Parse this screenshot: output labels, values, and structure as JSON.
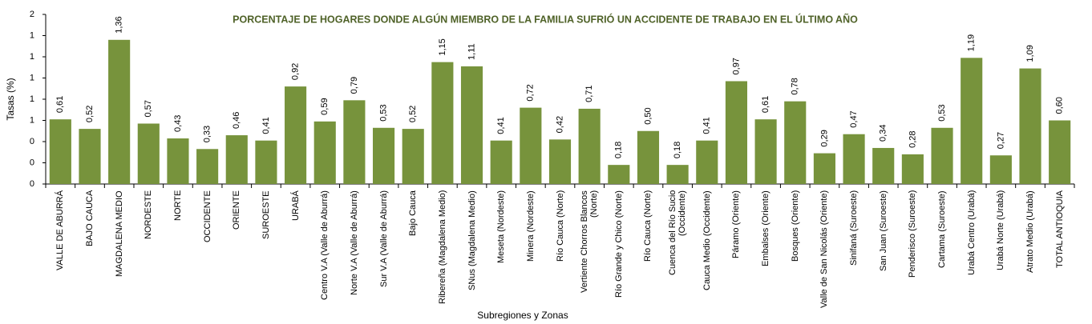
{
  "chart_data": {
    "type": "bar",
    "title": "PORCENTAJE DE HOGARES DONDE ALGÚN MIEMBRO DE LA FAMILIA SUFRIÓ UN ACCIDENTE DE TRABAJO EN EL ÚLTIMO AÑO",
    "ylabel": "Tasas (%)",
    "xlabel": "Subregiones y Zonas",
    "categories": [
      "VALLE DE ABURRÁ",
      "BAJO CAUCA",
      "MAGDALENA MEDIO",
      "NORDESTE",
      "NORTE",
      "OCCIDENTE",
      "ORIENTE",
      "SUROESTE",
      "URABÁ",
      "Centro V.A (Valle de Aburrá)",
      "Norte V.A (Valle de Aburrá)",
      "Sur V.A (Valle de Aburrá)",
      "Bajo Cauca",
      "Ribereña (Magdalena Medio)",
      "SNus (Magdalena Medio)",
      "Meseta (Nordeste)",
      "Minera (Nordeste)",
      "Río Cauca (Norte)",
      "Vertiente Chorros Blancos (Norte)",
      "Río Grande y Chico (Norte)",
      "Río Cauca (Norte)",
      "Cuenca del Río Sucio (Occidente)",
      "Cauca Medio (Occidente)",
      "Páramo (Oriente)",
      "Embalses (Oriente)",
      "Bosques (Oriente)",
      "Valle de San Nicolás (Oriente)",
      "Sinifaná (Suroeste)",
      "San Juan (Suroeste)",
      "Penderisco (Suroeste)",
      "Cartama (Suroeste)",
      "Urabá Centro (Urabá)",
      "Urabá Norte (Urabá)",
      "Atrato Medio (Urabá)",
      "TOTAL ANTIOQUIA"
    ],
    "values": [
      0.61,
      0.52,
      1.36,
      0.57,
      0.43,
      0.33,
      0.46,
      0.41,
      0.92,
      0.59,
      0.79,
      0.53,
      0.52,
      1.15,
      1.11,
      0.41,
      0.72,
      0.42,
      0.71,
      0.18,
      0.5,
      0.18,
      0.41,
      0.97,
      0.61,
      0.78,
      0.29,
      0.47,
      0.34,
      0.28,
      0.53,
      1.19,
      0.27,
      1.09,
      0.6
    ],
    "value_labels": [
      "0,61",
      "0,52",
      "1,36",
      "0,57",
      "0,43",
      "0,33",
      "0,46",
      "0,41",
      "0,92",
      "0,59",
      "0,79",
      "0,53",
      "0,52",
      "1,15",
      "1,11",
      "0,41",
      "0,72",
      "0,42",
      "0,71",
      "0,18",
      "0,50",
      "0,18",
      "0,41",
      "0,97",
      "0,61",
      "0,78",
      "0,29",
      "0,47",
      "0,34",
      "0,28",
      "0,53",
      "1,19",
      "0,27",
      "1,09",
      "0,60"
    ],
    "color": "#77933c",
    "ylim": [
      0,
      1.6
    ],
    "yticks": [
      0,
      {
        "value": 0.2,
        "label": "0"
      },
      {
        "value": 0.4,
        "label": "0"
      },
      {
        "value": 0.6,
        "label": "1"
      },
      {
        "value": 0.8,
        "label": "1"
      },
      1,
      {
        "value": 1.2,
        "label": "1"
      },
      {
        "value": 1.4,
        "label": "1"
      },
      {
        "value": 1.6,
        "label": "2"
      }
    ],
    "grid": false
  }
}
